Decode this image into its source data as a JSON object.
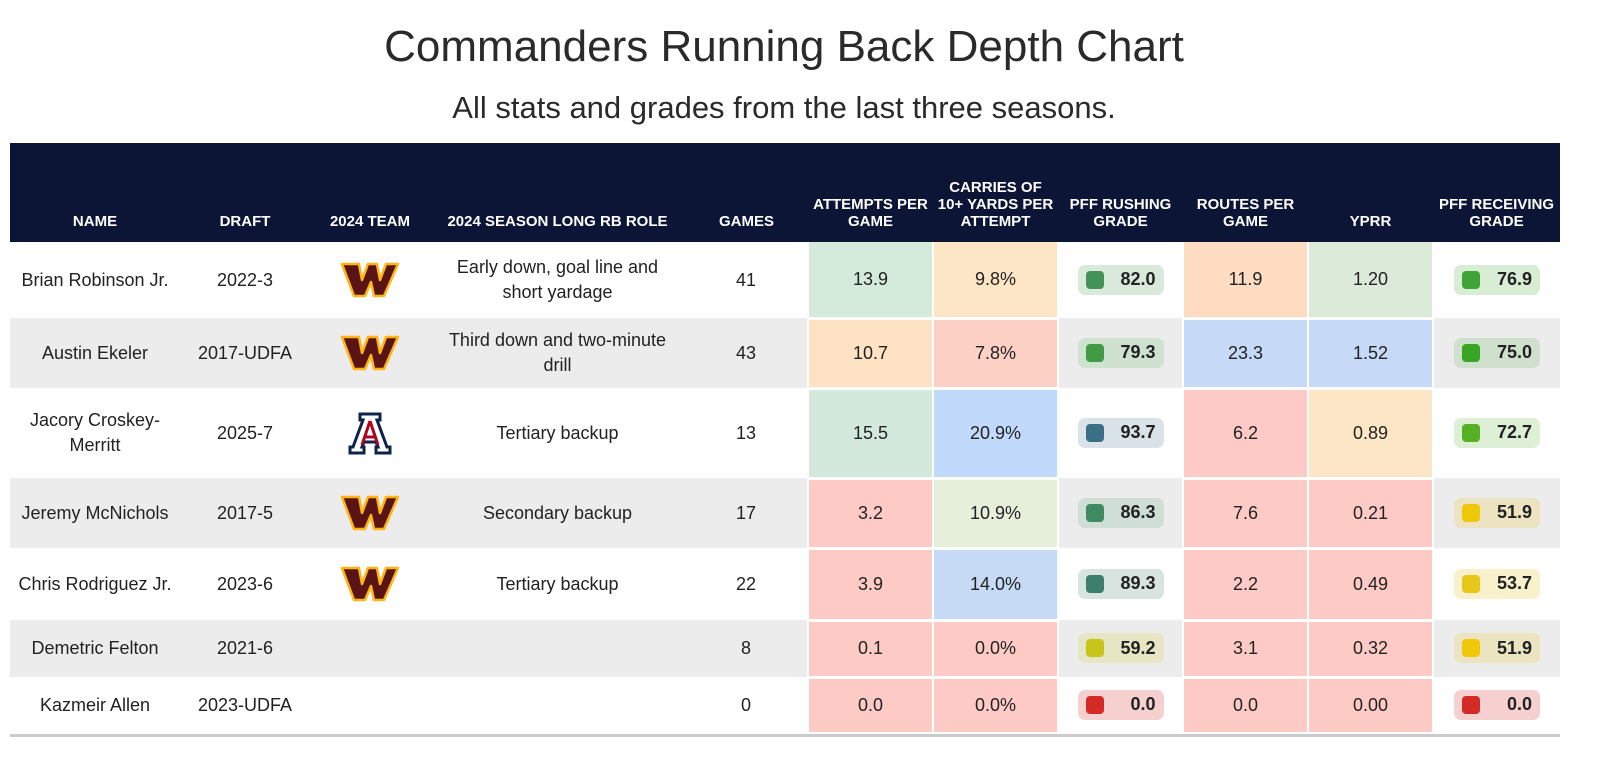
{
  "title": "Commanders Running Back Depth Chart",
  "subtitle": "All stats and grades from the last three seasons.",
  "columns": [
    "NAME",
    "DRAFT",
    "2024 TEAM",
    "2024 SEASON LONG RB ROLE",
    "GAMES",
    "ATTEMPTS PER GAME",
    "CARRIES OF 10+ YARDS PER ATTEMPT",
    "PFF RUSHING GRADE",
    "ROUTES PER GAME",
    "YPRR",
    "PFF RECEIVING GRADE"
  ],
  "rows": [
    {
      "name": "Brian Robinson Jr.",
      "draft": "2022-3",
      "team": "commanders-logo",
      "role": "Early down, goal line and short yardage",
      "games": "41",
      "att": "13.9",
      "att_c": "#d4ebdc",
      "car": "9.8%",
      "car_c": "#fde6c6",
      "rush": "82.0",
      "rush_c": "#44915a",
      "rush_bg": "#d9eadc",
      "routes": "11.9",
      "routes_c": "#fddcc2",
      "yprr": "1.20",
      "yprr_c": "#dcebd9",
      "rec": "76.9",
      "rec_c": "#3ea437",
      "rec_bg": "#d9edd4"
    },
    {
      "name": "Austin Ekeler",
      "draft": "2017-UDFA",
      "team": "commanders-logo",
      "role": "Third down and two-minute drill",
      "games": "43",
      "att": "10.7",
      "att_c": "#fde2c4",
      "car": "7.8%",
      "car_c": "#fdd0c6",
      "rush": "79.3",
      "rush_c": "#419a44",
      "rush_bg": "#cfe1cf",
      "routes": "23.3",
      "routes_c": "#c6d9f6",
      "yprr": "1.52",
      "yprr_c": "#c6d9f6",
      "rec": "75.0",
      "rec_c": "#38a624",
      "rec_bg": "#cfe1cc"
    },
    {
      "name": "Jacory Croskey-Merritt",
      "draft": "2025-7",
      "team": "arizona-logo",
      "role": "Tertiary backup",
      "games": "13",
      "att": "15.5",
      "att_c": "#d2e9dc",
      "car": "20.9%",
      "car_c": "#c1d9fb",
      "rush": "93.7",
      "rush_c": "#3a6f87",
      "rush_bg": "#d9e3e8",
      "routes": "6.2",
      "routes_c": "#fdcac5",
      "yprr": "0.89",
      "yprr_c": "#fde6c6",
      "rec": "72.7",
      "rec_c": "#56b024",
      "rec_bg": "#ddefd4"
    },
    {
      "name": "Jeremy McNichols",
      "draft": "2017-5",
      "team": "commanders-logo",
      "role": "Secondary backup",
      "games": "17",
      "att": "3.2",
      "att_c": "#fdcac5",
      "car": "10.9%",
      "car_c": "#e5efda",
      "rush": "86.3",
      "rush_c": "#3f8a62",
      "rush_bg": "#cfdfd6",
      "routes": "7.6",
      "routes_c": "#fdcac5",
      "yprr": "0.21",
      "yprr_c": "#fdcac5",
      "rec": "51.9",
      "rec_c": "#efc80a",
      "rec_bg": "#ece3c0"
    },
    {
      "name": "Chris Rodriguez Jr.",
      "draft": "2023-6",
      "team": "commanders-logo",
      "role": "Tertiary backup",
      "games": "22",
      "att": "3.9",
      "att_c": "#fdcac5",
      "car": "14.0%",
      "car_c": "#c6daf5",
      "rush": "89.3",
      "rush_c": "#3d7f6c",
      "rush_bg": "#d7e4e0",
      "routes": "2.2",
      "routes_c": "#fdcac5",
      "yprr": "0.49",
      "yprr_c": "#fdcac5",
      "rec": "53.7",
      "rec_c": "#e7c818",
      "rec_bg": "#f8f1cc"
    },
    {
      "name": "Demetric Felton",
      "draft": "2021-6",
      "team": "",
      "role": "",
      "games": "8",
      "att": "0.1",
      "att_c": "#fdcac5",
      "car": "0.0%",
      "car_c": "#fdcac5",
      "rush": "59.2",
      "rush_c": "#c8c41a",
      "rush_bg": "#e6e6c4",
      "routes": "3.1",
      "routes_c": "#fdcac5",
      "yprr": "0.32",
      "yprr_c": "#fdcac5",
      "rec": "51.9",
      "rec_c": "#efc80a",
      "rec_bg": "#ece3c0"
    },
    {
      "name": "Kazmeir Allen",
      "draft": "2023-UDFA",
      "team": "",
      "role": "",
      "games": "0",
      "att": "0.0",
      "att_c": "#fdcac5",
      "car": "0.0%",
      "car_c": "#fdcac5",
      "rush": "0.0",
      "rush_c": "#d42a26",
      "rush_bg": "#f6d0cf",
      "routes": "0.0",
      "routes_c": "#fdcac5",
      "yprr": "0.00",
      "yprr_c": "#fdcac5",
      "rec": "0.0",
      "rec_c": "#d42a26",
      "rec_bg": "#f6d0cf"
    }
  ]
}
